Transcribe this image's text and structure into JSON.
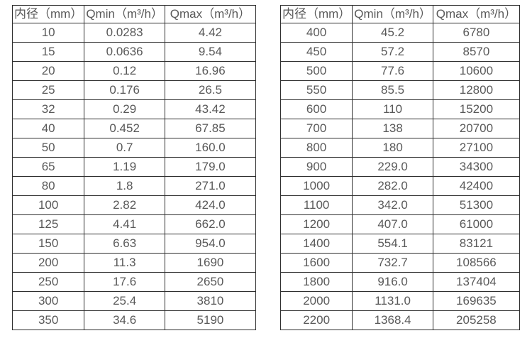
{
  "style": {
    "text_color": "#595959",
    "border_color": "#2f2f2f",
    "background_color": "#ffffff"
  },
  "tables": [
    {
      "name": "flow-table-small-diameters",
      "headers": [
        "内径（mm）",
        "Qmin（m³/h）",
        "Qmax（m³/h）"
      ],
      "rows": [
        [
          "10",
          "0.0283",
          "4.42"
        ],
        [
          "15",
          "0.0636",
          "9.54"
        ],
        [
          "20",
          "0.12",
          "16.96"
        ],
        [
          "25",
          "0.176",
          "26.5"
        ],
        [
          "32",
          "0.29",
          "43.42"
        ],
        [
          "40",
          "0.452",
          "67.85"
        ],
        [
          "50",
          "0.7",
          "160.0"
        ],
        [
          "65",
          "1.19",
          "179.0"
        ],
        [
          "80",
          "1.8",
          "271.0"
        ],
        [
          "100",
          "2.82",
          "424.0"
        ],
        [
          "125",
          "4.41",
          "662.0"
        ],
        [
          "150",
          "6.63",
          "954.0"
        ],
        [
          "200",
          "11.3",
          "1690"
        ],
        [
          "250",
          "17.6",
          "2650"
        ],
        [
          "300",
          "25.4",
          "3810"
        ],
        [
          "350",
          "34.6",
          "5190"
        ]
      ]
    },
    {
      "name": "flow-table-large-diameters",
      "headers": [
        "内径（mm）",
        "Qmin（m³/h）",
        "Qmax（m³/h）"
      ],
      "rows": [
        [
          "400",
          "45.2",
          "6780"
        ],
        [
          "450",
          "57.2",
          "8570"
        ],
        [
          "500",
          "77.6",
          "10600"
        ],
        [
          "550",
          "85.5",
          "12800"
        ],
        [
          "600",
          "110",
          "15200"
        ],
        [
          "700",
          "138",
          "20700"
        ],
        [
          "800",
          "180",
          "27100"
        ],
        [
          "900",
          "229.0",
          "34300"
        ],
        [
          "1000",
          "282.0",
          "42400"
        ],
        [
          "1100",
          "342.0",
          "51300"
        ],
        [
          "1200",
          "407.0",
          "61000"
        ],
        [
          "1400",
          "554.1",
          "83121"
        ],
        [
          "1600",
          "732.7",
          "108566"
        ],
        [
          "1800",
          "916.0",
          "137404"
        ],
        [
          "2000",
          "1131.0",
          "169635"
        ],
        [
          "2200",
          "1368.4",
          "205258"
        ]
      ]
    }
  ]
}
